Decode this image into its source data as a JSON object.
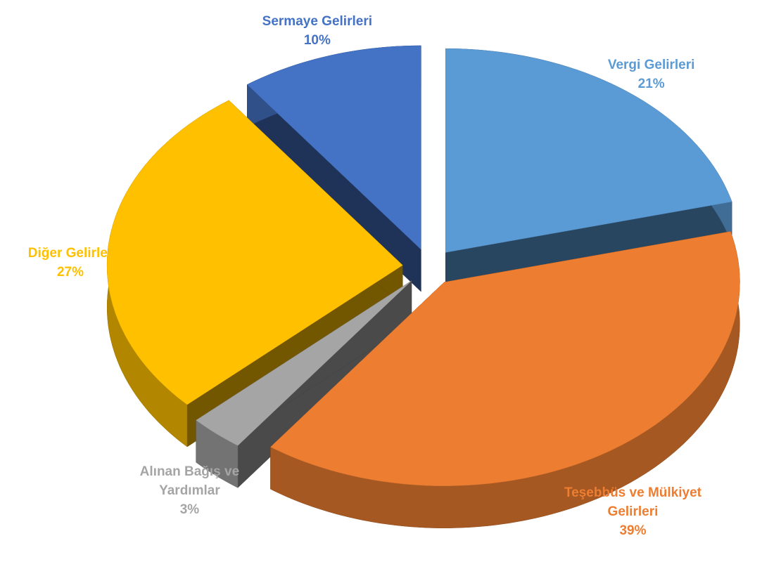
{
  "chart_data": {
    "type": "pie3d",
    "categories": [
      "Vergi Gelirleri",
      "Teşebbüs ve Mülkiyet Gelirleri",
      "Alınan Bağış ve Yardımlar",
      "Diğer Gelirler",
      "Sermaye Gelirleri"
    ],
    "values": [
      21,
      39,
      3,
      27,
      10
    ],
    "value_labels": [
      "21%",
      "39%",
      "3%",
      "27%",
      "10%"
    ],
    "colors": [
      "#5b9bd5",
      "#ed7d31",
      "#a5a5a5",
      "#ffc000",
      "#4472c4"
    ]
  }
}
